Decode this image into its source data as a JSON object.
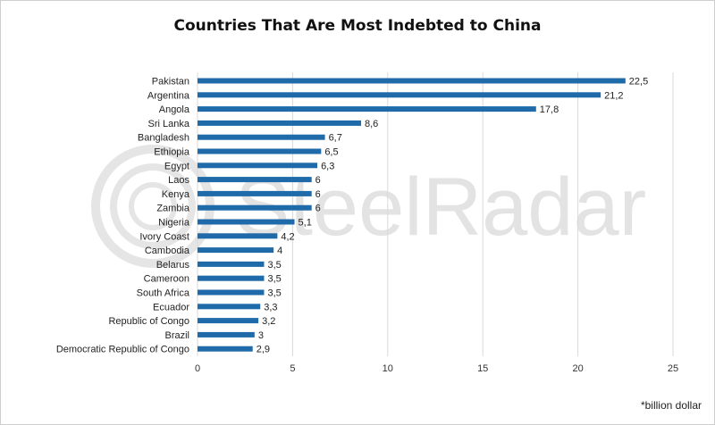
{
  "watermark": {
    "text": "SteelRadar"
  },
  "footnote": "*billion dollar",
  "chart_data": {
    "type": "bar",
    "orientation": "horizontal",
    "title": "Countries That Are Most Indebted to China",
    "xlabel": "",
    "ylabel": "",
    "xlim": [
      0,
      25
    ],
    "xticks": [
      0,
      5,
      10,
      15,
      20,
      25
    ],
    "grid": true,
    "bar_color": "#1f6aa8",
    "categories": [
      "Pakistan",
      "Argentina",
      "Angola",
      "Sri Lanka",
      "Bangladesh",
      "Ethiopia",
      "Egypt",
      "Laos",
      "Kenya",
      "Zambia",
      "Nigeria",
      "Ivory Coast",
      "Cambodia",
      "Belarus",
      "Cameroon",
      "South Africa",
      "Ecuador",
      "Republic of Congo",
      "Brazil",
      "Democratic Republic of Congo"
    ],
    "values": [
      22.5,
      21.2,
      17.8,
      8.6,
      6.7,
      6.5,
      6.3,
      6,
      6,
      6,
      5.1,
      4.2,
      4,
      3.5,
      3.5,
      3.5,
      3.3,
      3.2,
      3,
      2.9
    ],
    "value_labels": [
      "22,5",
      "21,2",
      "17,8",
      "8,6",
      "6,7",
      "6,5",
      "6,3",
      "6",
      "6",
      "6",
      "5,1",
      "4,2",
      "4",
      "3,5",
      "3,5",
      "3,5",
      "3,3",
      "3,2",
      "3",
      "2,9"
    ],
    "tick_labels": [
      "0",
      "5",
      "10",
      "15",
      "20",
      "25"
    ]
  }
}
